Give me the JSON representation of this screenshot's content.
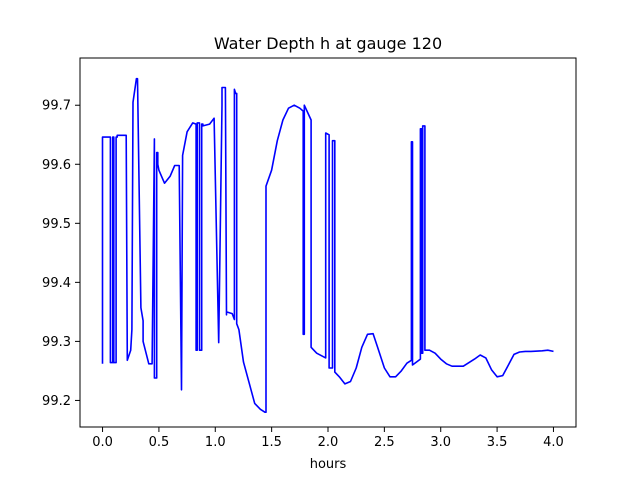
{
  "chart_data": {
    "type": "line",
    "title": "Water Depth h at gauge 120",
    "xlabel": "hours",
    "ylabel": "",
    "xlim": [
      -0.2,
      4.2
    ],
    "ylim": [
      99.155,
      99.78
    ],
    "x_ticks": [
      0.0,
      0.5,
      1.0,
      1.5,
      2.0,
      2.5,
      3.0,
      3.5,
      4.0
    ],
    "x_tick_labels": [
      "0.0",
      "0.5",
      "1.0",
      "1.5",
      "2.0",
      "2.5",
      "3.0",
      "3.5",
      "4.0"
    ],
    "y_ticks": [
      99.2,
      99.3,
      99.4,
      99.5,
      99.6,
      99.7
    ],
    "y_tick_labels": [
      "99.2",
      "99.3",
      "99.4",
      "99.5",
      "99.6",
      "99.7"
    ],
    "grid": false,
    "legend": "none",
    "series": [
      {
        "color": "#0000ff",
        "x": [
          0.0,
          0.0,
          0.07,
          0.07,
          0.09,
          0.09,
          0.1,
          0.1,
          0.12,
          0.12,
          0.13,
          0.13,
          0.21,
          0.22,
          0.25,
          0.26,
          0.27,
          0.3,
          0.31,
          0.34,
          0.36,
          0.36,
          0.41,
          0.44,
          0.46,
          0.46,
          0.48,
          0.48,
          0.49,
          0.49,
          0.5,
          0.55,
          0.6,
          0.64,
          0.68,
          0.7,
          0.7,
          0.71,
          0.71,
          0.75,
          0.8,
          0.83,
          0.83,
          0.84,
          0.84,
          0.86,
          0.86,
          0.88,
          0.88,
          0.89,
          0.89,
          0.95,
          0.99,
          1.03,
          1.03,
          1.06,
          1.06,
          1.09,
          1.1,
          1.1,
          1.15,
          1.17,
          1.17,
          1.18,
          1.19,
          1.19,
          1.21,
          1.25,
          1.3,
          1.35,
          1.4,
          1.44,
          1.45,
          1.45,
          1.5,
          1.55,
          1.6,
          1.65,
          1.7,
          1.75,
          1.78,
          1.78,
          1.79,
          1.79,
          1.85,
          1.85,
          1.9,
          1.95,
          1.98,
          1.98,
          2.01,
          2.01,
          2.04,
          2.04,
          2.06,
          2.06,
          2.1,
          2.15,
          2.2,
          2.25,
          2.3,
          2.35,
          2.4,
          2.44,
          2.5,
          2.55,
          2.6,
          2.65,
          2.7,
          2.74,
          2.74,
          2.75,
          2.75,
          2.82,
          2.82,
          2.83,
          2.83,
          2.84,
          2.84,
          2.86,
          2.86,
          2.9,
          2.95,
          3.0,
          3.05,
          3.1,
          3.2,
          3.3,
          3.35,
          3.4,
          3.45,
          3.5,
          3.55,
          3.6,
          3.65,
          3.7,
          3.75,
          3.8,
          3.9,
          3.95,
          4.0
        ],
        "y": [
          99.262,
          99.646,
          99.646,
          99.264,
          99.264,
          99.646,
          99.646,
          99.264,
          99.264,
          99.646,
          99.646,
          99.649,
          99.649,
          99.268,
          99.285,
          99.32,
          99.705,
          99.745,
          99.745,
          99.357,
          99.335,
          99.3,
          99.262,
          99.262,
          99.643,
          99.238,
          99.238,
          99.62,
          99.62,
          99.6,
          99.59,
          99.568,
          99.58,
          99.598,
          99.598,
          99.218,
          99.218,
          99.615,
          99.615,
          99.655,
          99.67,
          99.668,
          99.285,
          99.285,
          99.67,
          99.67,
          99.285,
          99.285,
          99.668,
          99.668,
          99.665,
          99.668,
          99.678,
          99.298,
          99.298,
          99.7,
          99.73,
          99.73,
          99.345,
          99.35,
          99.347,
          99.337,
          99.727,
          99.72,
          99.72,
          99.33,
          99.32,
          99.265,
          99.23,
          99.195,
          99.185,
          99.18,
          99.18,
          99.563,
          99.59,
          99.64,
          99.675,
          99.695,
          99.7,
          99.695,
          99.69,
          99.312,
          99.312,
          99.7,
          99.675,
          99.29,
          99.28,
          99.275,
          99.272,
          99.653,
          99.65,
          99.255,
          99.255,
          99.64,
          99.64,
          99.248,
          99.24,
          99.228,
          99.232,
          99.255,
          99.29,
          99.312,
          99.313,
          99.29,
          99.255,
          99.24,
          99.24,
          99.25,
          99.263,
          99.268,
          99.638,
          99.638,
          99.26,
          99.27,
          99.66,
          99.66,
          99.28,
          99.28,
          99.665,
          99.665,
          99.285,
          99.285,
          99.28,
          99.27,
          99.262,
          99.258,
          99.258,
          99.27,
          99.277,
          99.272,
          99.252,
          99.24,
          99.242,
          99.26,
          99.278,
          99.282,
          99.283,
          99.283,
          99.284,
          99.285,
          99.283
        ]
      }
    ]
  }
}
